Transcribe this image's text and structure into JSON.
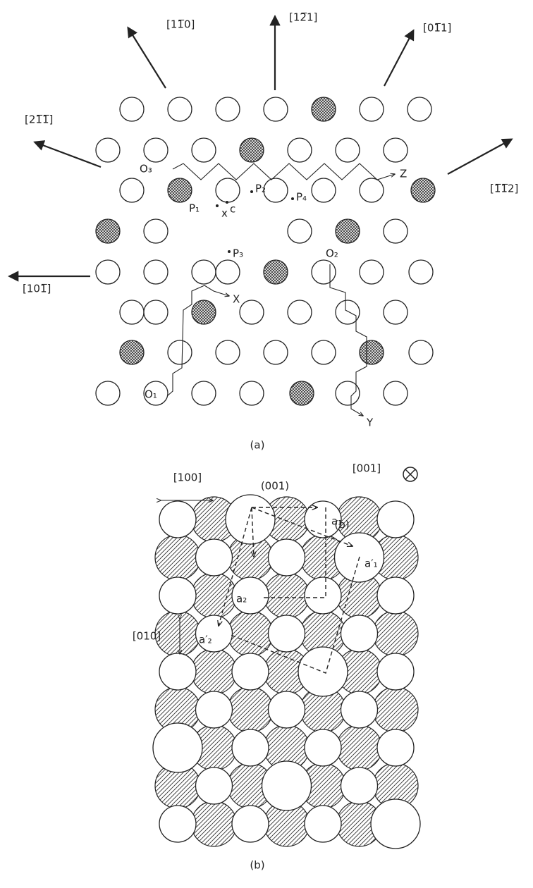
{
  "part_a": {
    "directions": [
      "[11̅0]",
      "[12̅1]",
      "[01̅1]",
      "[21̅1̅]",
      "[1̅1̅2]",
      "[101̅]"
    ],
    "points": [
      "O₃",
      "Z",
      "P₁",
      "P₂",
      "P₄",
      "x",
      "c",
      "P₃",
      "O₂",
      "X",
      "O₁",
      "Y"
    ],
    "caption": "(a)"
  },
  "part_b": {
    "directions": [
      "[100]",
      "(001)",
      "[001]",
      "[010]"
    ],
    "vectors": [
      "a₁",
      "a′₁",
      "a₂",
      "a′₂"
    ],
    "caption": "(b)"
  }
}
